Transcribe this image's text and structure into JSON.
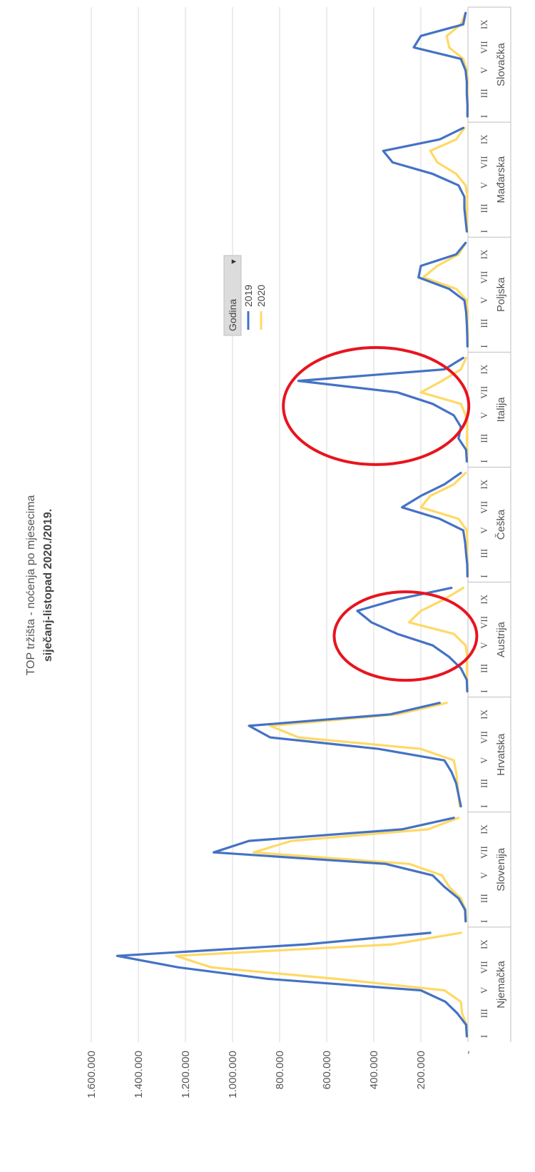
{
  "chart_data": {
    "type": "line",
    "title": "TOP tržišta - noćenja po mjesecima",
    "subtitle": "siječanj-listopad  2020./2019.",
    "legend": {
      "title": "Godina",
      "placement": "center-top"
    },
    "y_ticks": [
      "-",
      "200.000",
      "400.000",
      "600.000",
      "800.000",
      "1.000.000",
      "1.200.000",
      "1.400.000",
      "1.600.000"
    ],
    "ylim": [
      0,
      1600000
    ],
    "grid": true,
    "month_labels": [
      "I",
      "III",
      "V",
      "VII",
      "IX"
    ],
    "groups": [
      {
        "name": "Njemačka",
        "series": [
          {
            "name": "2019",
            "values": [
              5000,
              8000,
              45000,
              95000,
              200000,
              850000,
              1230000,
              1490000,
              690000,
              160000
            ]
          },
          {
            "name": "2020",
            "values": [
              4000,
              6000,
              25000,
              30000,
              100000,
              560000,
              1090000,
              1240000,
              320000,
              30000
            ]
          }
        ]
      },
      {
        "name": "Slovenija",
        "series": [
          {
            "name": "2019",
            "values": [
              10000,
              12000,
              40000,
              100000,
              150000,
              350000,
              1080000,
              930000,
              280000,
              60000
            ]
          },
          {
            "name": "2020",
            "values": [
              8000,
              10000,
              30000,
              80000,
              110000,
              250000,
              910000,
              750000,
              170000,
              40000
            ]
          }
        ]
      },
      {
        "name": "Hrvatska",
        "series": [
          {
            "name": "2019",
            "values": [
              30000,
              40000,
              50000,
              70000,
              100000,
              380000,
              840000,
              930000,
              330000,
              120000
            ]
          },
          {
            "name": "2020",
            "values": [
              35000,
              40000,
              45000,
              50000,
              60000,
              200000,
              720000,
              840000,
              300000,
              90000
            ]
          }
        ]
      },
      {
        "name": "Austrija",
        "series": [
          {
            "name": "2019",
            "values": [
              3000,
              5000,
              30000,
              80000,
              150000,
              300000,
              410000,
              470000,
              300000,
              70000
            ]
          },
          {
            "name": "2020",
            "values": [
              2000,
              3000,
              5000,
              3000,
              10000,
              60000,
              250000,
              200000,
              100000,
              20000
            ]
          }
        ]
      },
      {
        "name": "Češka",
        "series": [
          {
            "name": "2019",
            "values": [
              2000,
              3000,
              8000,
              12000,
              20000,
              120000,
              280000,
              200000,
              100000,
              30000
            ]
          },
          {
            "name": "2020",
            "values": [
              1000,
              1000,
              3000,
              2000,
              5000,
              40000,
              200000,
              160000,
              60000,
              10000
            ]
          }
        ]
      },
      {
        "name": "Italija",
        "series": [
          {
            "name": "2019",
            "values": [
              5000,
              8000,
              40000,
              30000,
              60000,
              150000,
              300000,
              720000,
              100000,
              20000
            ]
          },
          {
            "name": "2020",
            "values": [
              3000,
              3000,
              5000,
              2000,
              10000,
              30000,
              200000,
              110000,
              30000,
              8000
            ]
          }
        ]
      },
      {
        "name": "Poljska",
        "series": [
          {
            "name": "2019",
            "values": [
              2000,
              3000,
              5000,
              8000,
              15000,
              80000,
              210000,
              200000,
              50000,
              10000
            ]
          },
          {
            "name": "2020",
            "values": [
              1000,
              1000,
              2000,
              1000,
              5000,
              50000,
              190000,
              130000,
              40000,
              10000
            ]
          }
        ]
      },
      {
        "name": "Mađarska",
        "series": [
          {
            "name": "2019",
            "values": [
              5000,
              10000,
              15000,
              15000,
              40000,
              150000,
              320000,
              360000,
              120000,
              20000
            ]
          },
          {
            "name": "2020",
            "values": [
              3000,
              4000,
              5000,
              2000,
              10000,
              50000,
              130000,
              160000,
              50000,
              15000
            ]
          }
        ]
      },
      {
        "name": "Slovačka",
        "series": [
          {
            "name": "2019",
            "values": [
              2000,
              2000,
              5000,
              5000,
              10000,
              30000,
              230000,
              200000,
              20000,
              10000
            ]
          },
          {
            "name": "2020",
            "values": [
              1000,
              1000,
              2000,
              1000,
              5000,
              20000,
              80000,
              90000,
              30000,
              10000
            ]
          }
        ]
      }
    ],
    "series_colors": {
      "2019": "#4472C4",
      "2020": "#FFD966"
    },
    "annotations": [
      {
        "shape": "ellipse",
        "color": "#E8141E",
        "around": "Austrija peak"
      },
      {
        "shape": "ellipse",
        "color": "#E8141E",
        "around": "Italija peak"
      }
    ]
  }
}
